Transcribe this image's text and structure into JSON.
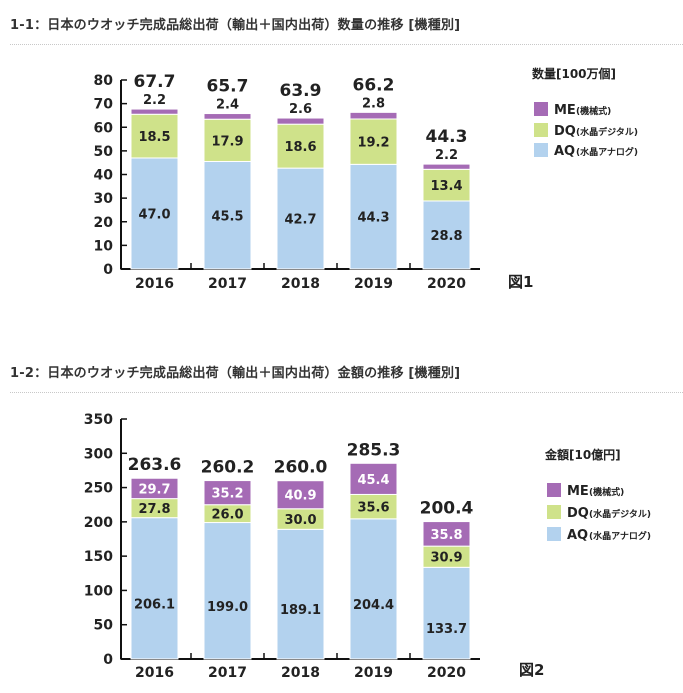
{
  "sections": [
    {
      "title": "1-1：日本のウオッチ完成品総出荷（輸出＋国内出荷）数量の推移 [機種別]"
    },
    {
      "title": "1-2：日本のウオッチ完成品総出荷（輸出＋国内出荷）金額の推移 [機種別]"
    }
  ],
  "colors": {
    "ME": "#a56bb5",
    "DQ": "#cfe28a",
    "AQ": "#b3d2ee",
    "axis": "#111111",
    "text": "#222222"
  },
  "chart_data": [
    {
      "type": "bar",
      "stacked": true,
      "figure_label": "図1",
      "unit_label": "数量[100万個]",
      "categories": [
        "2016",
        "2017",
        "2018",
        "2019",
        "2020"
      ],
      "totals": [
        "67.7",
        "65.7",
        "63.9",
        "66.2",
        "44.3"
      ],
      "yticks": [
        "0",
        "10",
        "20",
        "30",
        "40",
        "50",
        "60",
        "70",
        "80"
      ],
      "ylim": [
        0,
        80
      ],
      "legend_position": "right",
      "series": [
        {
          "key": "AQ",
          "name": "AQ",
          "sub": "(水晶アナログ)",
          "values": [
            47.0,
            45.5,
            42.7,
            44.3,
            28.8
          ],
          "labels": [
            "47.0",
            "45.5",
            "42.7",
            "44.3",
            "28.8"
          ]
        },
        {
          "key": "DQ",
          "name": "DQ",
          "sub": "(水晶デジタル)",
          "values": [
            18.5,
            17.9,
            18.6,
            19.2,
            13.4
          ],
          "labels": [
            "18.5",
            "17.9",
            "18.6",
            "19.2",
            "13.4"
          ]
        },
        {
          "key": "ME",
          "name": "ME",
          "sub": "(機械式)",
          "values": [
            2.2,
            2.4,
            2.6,
            2.8,
            2.2
          ],
          "labels": [
            "2.2",
            "2.4",
            "2.6",
            "2.8",
            "2.2"
          ]
        }
      ]
    },
    {
      "type": "bar",
      "stacked": true,
      "figure_label": "図2",
      "unit_label": "金額[10億円]",
      "categories": [
        "2016",
        "2017",
        "2018",
        "2019",
        "2020"
      ],
      "totals": [
        "263.6",
        "260.2",
        "260.0",
        "285.3",
        "200.4"
      ],
      "yticks": [
        "0",
        "50",
        "100",
        "150",
        "200",
        "250",
        "300",
        "350"
      ],
      "ylim": [
        0,
        350
      ],
      "legend_position": "right",
      "series": [
        {
          "key": "AQ",
          "name": "AQ",
          "sub": "(水晶アナログ)",
          "values": [
            206.1,
            199.0,
            189.1,
            204.4,
            133.7
          ],
          "labels": [
            "206.1",
            "199.0",
            "189.1",
            "204.4",
            "133.7"
          ]
        },
        {
          "key": "DQ",
          "name": "DQ",
          "sub": "(水晶デジタル)",
          "values": [
            27.8,
            26.0,
            30.0,
            35.6,
            30.9
          ],
          "labels": [
            "27.8",
            "26.0",
            "30.0",
            "35.6",
            "30.9"
          ]
        },
        {
          "key": "ME",
          "name": "ME",
          "sub": "(機械式)",
          "values": [
            29.7,
            35.2,
            40.9,
            45.4,
            35.8
          ],
          "labels": [
            "29.7",
            "35.2",
            "40.9",
            "45.4",
            "35.8"
          ]
        }
      ]
    }
  ]
}
